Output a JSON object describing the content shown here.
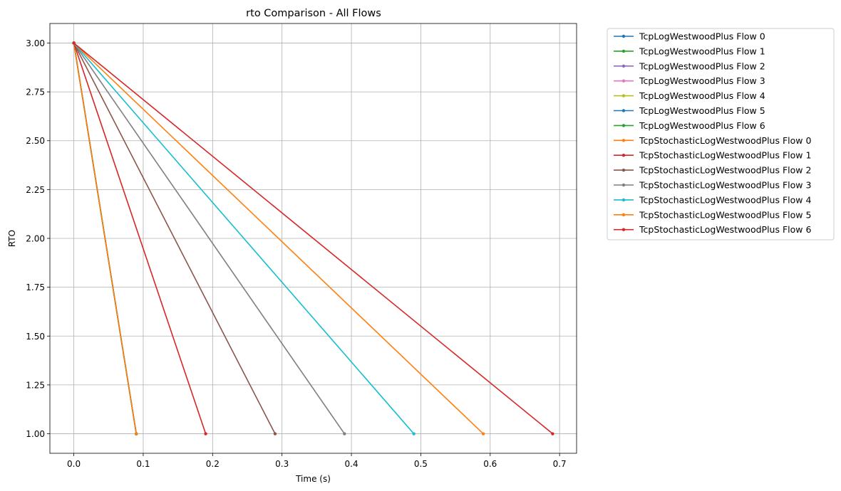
{
  "chart_data": {
    "type": "line",
    "title": "rto Comparison - All Flows",
    "xlabel": "Time (s)",
    "ylabel": "RTO",
    "xlim": [
      -0.0345,
      0.7245
    ],
    "ylim": [
      0.9,
      3.1
    ],
    "xticks": [
      0.0,
      0.1,
      0.2,
      0.3,
      0.4,
      0.5,
      0.6,
      0.7
    ],
    "xtick_labels": [
      "0.0",
      "0.1",
      "0.2",
      "0.3",
      "0.4",
      "0.5",
      "0.6",
      "0.7"
    ],
    "yticks": [
      1.0,
      1.25,
      1.5,
      1.75,
      2.0,
      2.25,
      2.5,
      2.75,
      3.0
    ],
    "ytick_labels": [
      "1.00",
      "1.25",
      "1.50",
      "1.75",
      "2.00",
      "2.25",
      "2.50",
      "2.75",
      "3.00"
    ],
    "grid": true,
    "legend_position": "outside-right-top",
    "series": [
      {
        "name": "TcpLogWestwoodPlus Flow 0",
        "color": "#1f77b4",
        "x": [
          0.0,
          0.09
        ],
        "y": [
          3.0,
          1.0
        ]
      },
      {
        "name": "TcpLogWestwoodPlus Flow 1",
        "color": "#2ca02c",
        "x": [
          0.0,
          0.09
        ],
        "y": [
          3.0,
          1.0
        ]
      },
      {
        "name": "TcpLogWestwoodPlus Flow 2",
        "color": "#9467bd",
        "x": [
          0.0,
          0.09
        ],
        "y": [
          3.0,
          1.0
        ]
      },
      {
        "name": "TcpLogWestwoodPlus Flow 3",
        "color": "#e377c2",
        "x": [
          0.0,
          0.09
        ],
        "y": [
          3.0,
          1.0
        ]
      },
      {
        "name": "TcpLogWestwoodPlus Flow 4",
        "color": "#bcbd22",
        "x": [
          0.0,
          0.09
        ],
        "y": [
          3.0,
          1.0
        ]
      },
      {
        "name": "TcpLogWestwoodPlus Flow 5",
        "color": "#1f77b4",
        "x": [
          0.0,
          0.09
        ],
        "y": [
          3.0,
          1.0
        ]
      },
      {
        "name": "TcpLogWestwoodPlus Flow 6",
        "color": "#2ca02c",
        "x": [
          0.0,
          0.09
        ],
        "y": [
          3.0,
          1.0
        ]
      },
      {
        "name": "TcpStochasticLogWestwoodPlus Flow 0",
        "color": "#ff7f0e",
        "x": [
          0.0,
          0.09
        ],
        "y": [
          3.0,
          1.0
        ]
      },
      {
        "name": "TcpStochasticLogWestwoodPlus Flow 1",
        "color": "#d62728",
        "x": [
          0.0,
          0.19
        ],
        "y": [
          3.0,
          1.0
        ]
      },
      {
        "name": "TcpStochasticLogWestwoodPlus Flow 2",
        "color": "#8c564b",
        "x": [
          0.0,
          0.29
        ],
        "y": [
          3.0,
          1.0
        ]
      },
      {
        "name": "TcpStochasticLogWestwoodPlus Flow 3",
        "color": "#7f7f7f",
        "x": [
          0.0,
          0.39
        ],
        "y": [
          3.0,
          1.0
        ]
      },
      {
        "name": "TcpStochasticLogWestwoodPlus Flow 4",
        "color": "#17becf",
        "x": [
          0.0,
          0.49
        ],
        "y": [
          3.0,
          1.0
        ]
      },
      {
        "name": "TcpStochasticLogWestwoodPlus Flow 5",
        "color": "#ff7f0e",
        "x": [
          0.0,
          0.59
        ],
        "y": [
          3.0,
          1.0
        ]
      },
      {
        "name": "TcpStochasticLogWestwoodPlus Flow 6",
        "color": "#d62728",
        "x": [
          0.0,
          0.69
        ],
        "y": [
          3.0,
          1.0
        ]
      }
    ]
  }
}
